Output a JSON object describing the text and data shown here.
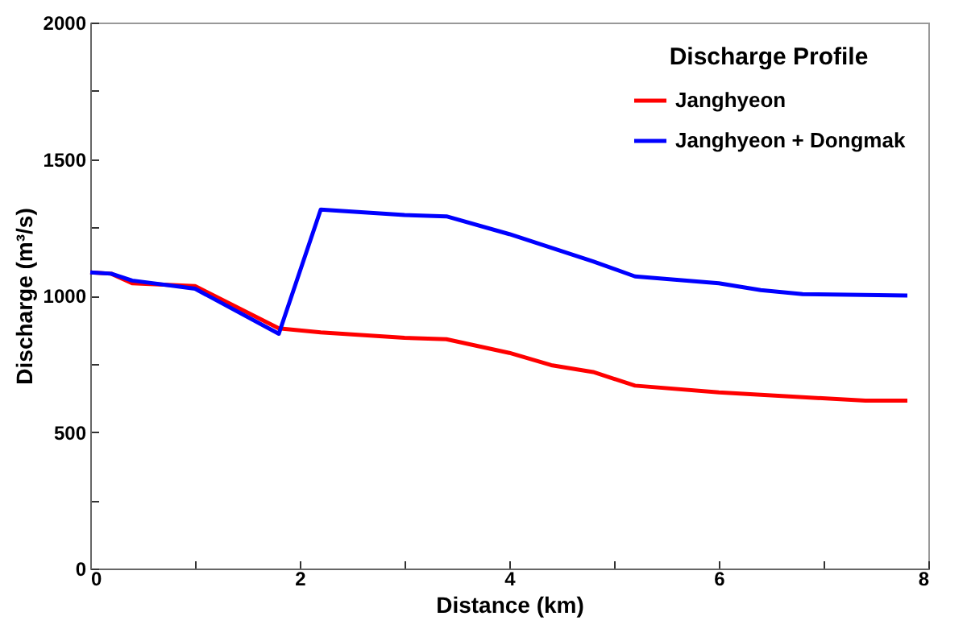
{
  "chart_data": {
    "type": "line",
    "xlabel": "Distance (km)",
    "ylabel": "Discharge (m³/s)",
    "legend_title": "Discharge Profile",
    "legend": "top right",
    "grid": false,
    "marker": "none",
    "line_style": "solid",
    "xlim": [
      0,
      8
    ],
    "xticks": [
      0,
      {
        "value": 1,
        "label": null
      },
      2,
      {
        "value": 3,
        "label": null
      },
      4,
      {
        "value": 5,
        "label": null
      },
      6,
      {
        "value": 7,
        "label": null
      },
      8
    ],
    "ylim": [
      0,
      2000
    ],
    "yticks": [
      0,
      {
        "value": 250,
        "label": null
      },
      500,
      {
        "value": 750,
        "label": null
      },
      1000,
      {
        "value": 1250,
        "label": null
      },
      1500,
      {
        "value": 1750,
        "label": null
      },
      2000
    ],
    "series": [
      {
        "name": "Janghyeon",
        "color": "#ff0000",
        "x": [
          0,
          0.2,
          0.4,
          1,
          1.8,
          2.2,
          3,
          3.4,
          4,
          4.4,
          4.8,
          5.2,
          6,
          7.4,
          7.8
        ],
        "values": [
          1085,
          1080,
          1045,
          1035,
          880,
          865,
          845,
          840,
          790,
          745,
          720,
          670,
          645,
          615,
          615
        ]
      },
      {
        "name": "Janghyeon + Dongmak",
        "color": "#0000ff",
        "x": [
          0,
          0.2,
          0.4,
          1,
          1.8,
          2.2,
          3,
          3.4,
          4,
          4.4,
          4.8,
          5.2,
          6,
          6.4,
          6.8,
          7.8
        ],
        "values": [
          1085,
          1080,
          1055,
          1025,
          860,
          1315,
          1295,
          1290,
          1225,
          1175,
          1125,
          1070,
          1045,
          1020,
          1005,
          1000
        ]
      }
    ]
  }
}
